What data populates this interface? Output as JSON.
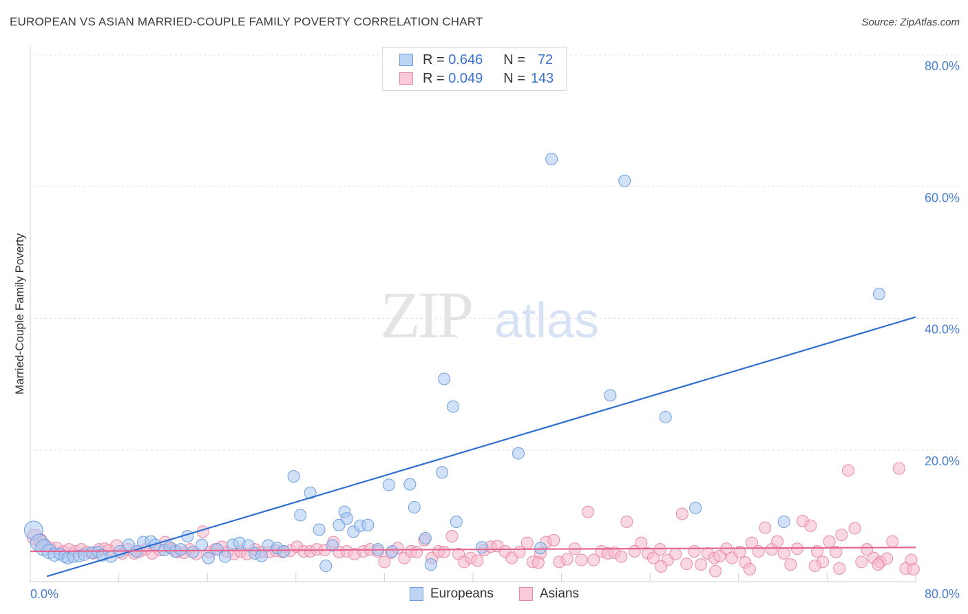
{
  "title": "EUROPEAN VS ASIAN MARRIED-COUPLE FAMILY POVERTY CORRELATION CHART",
  "source": "Source: ZipAtlas.com",
  "watermark": {
    "zip": "ZIP",
    "atlas": "atlas"
  },
  "legend": {
    "europeans": {
      "r_label": "R =",
      "r_value": "0.646",
      "n_label": "N =",
      "n_value": "72"
    },
    "asians": {
      "r_label": "R =",
      "r_value": "0.049",
      "n_label": "N =",
      "n_value": "143"
    }
  },
  "colors": {
    "europeans_fill": "#a9c8f2",
    "europeans_stroke": "#6e9edf",
    "europeans_line": "#2f6fd0",
    "asians_fill": "#f6b8cb",
    "asians_stroke": "#ea8aa9",
    "asians_line": "#e4658e",
    "tick": "#4a7fd0",
    "grid": "#dcdcdc"
  },
  "chart_data": {
    "type": "scatter",
    "title": "EUROPEAN VS ASIAN MARRIED-COUPLE FAMILY POVERTY CORRELATION CHART",
    "xlabel": "",
    "ylabel": "Married-Couple Family Poverty",
    "xlim": [
      0,
      80
    ],
    "ylim": [
      0,
      80
    ],
    "x_tick_labels": [
      "0.0%",
      "80.0%"
    ],
    "y_ticks": [
      20,
      40,
      60,
      80
    ],
    "y_tick_labels": [
      "20.0%",
      "40.0%",
      "60.0%",
      "80.0%"
    ],
    "legend_labels": [
      "Europeans",
      "Asians"
    ],
    "series": [
      {
        "name": "Europeans",
        "trend": {
          "x": [
            1.5,
            80
          ],
          "y": [
            0.8,
            40.2
          ]
        },
        "points": [
          [
            0.3,
            7.8
          ],
          [
            0.8,
            5.9
          ],
          [
            1.2,
            5.2
          ],
          [
            1.7,
            4.6
          ],
          [
            2.2,
            4.1
          ],
          [
            2.7,
            4.2
          ],
          [
            3.1,
            3.8
          ],
          [
            3.4,
            3.6
          ],
          [
            3.9,
            3.8
          ],
          [
            4.4,
            3.9
          ],
          [
            4.9,
            4.1
          ],
          [
            5.6,
            4.4
          ],
          [
            6.1,
            4.5
          ],
          [
            6.5,
            4.0
          ],
          [
            7.3,
            3.8
          ],
          [
            8.1,
            4.6
          ],
          [
            8.9,
            5.6
          ],
          [
            9.6,
            4.6
          ],
          [
            10.2,
            6.0
          ],
          [
            10.9,
            6.1
          ],
          [
            11.3,
            5.6
          ],
          [
            12.1,
            4.8
          ],
          [
            12.6,
            5.2
          ],
          [
            13.1,
            4.6
          ],
          [
            13.6,
            4.9
          ],
          [
            14.2,
            6.9
          ],
          [
            14.7,
            4.5
          ],
          [
            15.5,
            5.6
          ],
          [
            16.1,
            3.6
          ],
          [
            16.9,
            4.9
          ],
          [
            17.6,
            3.8
          ],
          [
            18.3,
            5.6
          ],
          [
            18.9,
            5.9
          ],
          [
            19.7,
            5.5
          ],
          [
            20.3,
            4.3
          ],
          [
            20.9,
            3.9
          ],
          [
            21.5,
            5.5
          ],
          [
            22.3,
            5.1
          ],
          [
            22.9,
            4.6
          ],
          [
            23.8,
            16.0
          ],
          [
            24.4,
            10.1
          ],
          [
            25.3,
            13.5
          ],
          [
            26.1,
            7.9
          ],
          [
            26.7,
            2.4
          ],
          [
            27.3,
            5.5
          ],
          [
            27.9,
            8.6
          ],
          [
            28.4,
            10.6
          ],
          [
            28.6,
            9.6
          ],
          [
            29.2,
            7.6
          ],
          [
            29.8,
            8.5
          ],
          [
            30.5,
            8.6
          ],
          [
            31.4,
            4.9
          ],
          [
            32.4,
            14.7
          ],
          [
            32.7,
            4.6
          ],
          [
            34.3,
            14.8
          ],
          [
            34.7,
            11.3
          ],
          [
            35.7,
            6.6
          ],
          [
            36.2,
            2.6
          ],
          [
            37.2,
            16.6
          ],
          [
            37.4,
            30.8
          ],
          [
            38.2,
            26.6
          ],
          [
            38.5,
            9.1
          ],
          [
            40.8,
            5.2
          ],
          [
            44.1,
            19.5
          ],
          [
            46.1,
            5.1
          ],
          [
            47.1,
            64.2
          ],
          [
            52.4,
            28.3
          ],
          [
            53.7,
            60.9
          ],
          [
            57.4,
            25.0
          ],
          [
            60.1,
            11.2
          ],
          [
            68.1,
            9.1
          ],
          [
            76.7,
            43.7
          ]
        ]
      },
      {
        "name": "Asians",
        "trend": {
          "x": [
            0,
            80
          ],
          "y": [
            4.6,
            5.2
          ]
        },
        "points": [
          [
            0.4,
            6.8
          ],
          [
            0.9,
            6.2
          ],
          [
            1.3,
            5.5
          ],
          [
            1.8,
            5.1
          ],
          [
            2.4,
            5.1
          ],
          [
            3.0,
            4.6
          ],
          [
            3.5,
            4.9
          ],
          [
            4.1,
            4.6
          ],
          [
            4.6,
            4.9
          ],
          [
            5.1,
            4.5
          ],
          [
            5.7,
            4.3
          ],
          [
            6.2,
            4.9
          ],
          [
            6.7,
            5.0
          ],
          [
            7.1,
            4.8
          ],
          [
            7.8,
            5.5
          ],
          [
            8.3,
            4.3
          ],
          [
            8.8,
            4.9
          ],
          [
            9.4,
            4.3
          ],
          [
            9.9,
            4.6
          ],
          [
            10.4,
            4.9
          ],
          [
            11.0,
            4.3
          ],
          [
            11.7,
            4.8
          ],
          [
            12.2,
            6.0
          ],
          [
            12.8,
            5.0
          ],
          [
            13.3,
            4.5
          ],
          [
            13.9,
            4.4
          ],
          [
            14.4,
            4.9
          ],
          [
            15.0,
            4.2
          ],
          [
            15.6,
            7.6
          ],
          [
            16.2,
            4.5
          ],
          [
            16.7,
            4.9
          ],
          [
            17.3,
            5.3
          ],
          [
            17.8,
            4.5
          ],
          [
            18.4,
            4.2
          ],
          [
            19.0,
            4.6
          ],
          [
            19.6,
            4.2
          ],
          [
            20.3,
            4.9
          ],
          [
            20.9,
            4.5
          ],
          [
            21.6,
            4.5
          ],
          [
            22.2,
            4.7
          ],
          [
            22.8,
            4.5
          ],
          [
            23.5,
            4.7
          ],
          [
            24.1,
            5.3
          ],
          [
            24.7,
            4.6
          ],
          [
            25.3,
            4.6
          ],
          [
            25.9,
            4.9
          ],
          [
            26.6,
            4.8
          ],
          [
            27.4,
            6.0
          ],
          [
            27.9,
            4.5
          ],
          [
            28.6,
            4.6
          ],
          [
            29.3,
            4.2
          ],
          [
            30.1,
            4.6
          ],
          [
            30.7,
            4.9
          ],
          [
            31.4,
            4.6
          ],
          [
            32.0,
            3.0
          ],
          [
            32.6,
            4.4
          ],
          [
            33.2,
            5.1
          ],
          [
            33.8,
            3.6
          ],
          [
            34.4,
            4.6
          ],
          [
            34.9,
            4.5
          ],
          [
            35.6,
            6.3
          ],
          [
            36.3,
            3.6
          ],
          [
            36.9,
            4.6
          ],
          [
            37.4,
            4.5
          ],
          [
            38.1,
            6.9
          ],
          [
            38.7,
            4.2
          ],
          [
            39.2,
            3.0
          ],
          [
            39.8,
            3.6
          ],
          [
            40.4,
            3.2
          ],
          [
            41.0,
            4.8
          ],
          [
            41.6,
            5.3
          ],
          [
            42.2,
            5.4
          ],
          [
            42.9,
            4.6
          ],
          [
            43.5,
            3.6
          ],
          [
            44.2,
            4.5
          ],
          [
            44.9,
            5.9
          ],
          [
            45.4,
            3.0
          ],
          [
            46.1,
            4.3
          ],
          [
            46.6,
            6.0
          ],
          [
            47.3,
            6.3
          ],
          [
            47.8,
            3.0
          ],
          [
            48.5,
            3.4
          ],
          [
            49.2,
            5.0
          ],
          [
            49.8,
            3.3
          ],
          [
            50.4,
            10.6
          ],
          [
            50.9,
            3.3
          ],
          [
            51.6,
            4.6
          ],
          [
            52.2,
            4.3
          ],
          [
            52.8,
            4.4
          ],
          [
            53.4,
            3.8
          ],
          [
            53.9,
            9.1
          ],
          [
            54.6,
            4.6
          ],
          [
            55.2,
            5.9
          ],
          [
            55.8,
            4.3
          ],
          [
            56.3,
            3.6
          ],
          [
            56.9,
            4.9
          ],
          [
            57.6,
            3.3
          ],
          [
            58.3,
            4.2
          ],
          [
            58.9,
            10.3
          ],
          [
            59.3,
            2.7
          ],
          [
            60.0,
            4.6
          ],
          [
            60.6,
            2.6
          ],
          [
            61.2,
            4.3
          ],
          [
            61.8,
            3.6
          ],
          [
            62.3,
            3.9
          ],
          [
            62.9,
            5.0
          ],
          [
            63.4,
            3.6
          ],
          [
            64.1,
            4.5
          ],
          [
            64.6,
            2.9
          ],
          [
            65.2,
            5.9
          ],
          [
            65.8,
            4.6
          ],
          [
            66.4,
            8.2
          ],
          [
            67.0,
            4.9
          ],
          [
            67.5,
            6.1
          ],
          [
            68.1,
            4.3
          ],
          [
            68.7,
            2.6
          ],
          [
            69.3,
            5.0
          ],
          [
            69.8,
            9.2
          ],
          [
            70.5,
            8.5
          ],
          [
            71.1,
            4.6
          ],
          [
            71.6,
            3.0
          ],
          [
            72.2,
            6.1
          ],
          [
            72.8,
            4.5
          ],
          [
            73.3,
            7.1
          ],
          [
            73.9,
            16.9
          ],
          [
            74.5,
            8.1
          ],
          [
            75.1,
            3.0
          ],
          [
            75.6,
            4.9
          ],
          [
            76.2,
            3.6
          ],
          [
            76.8,
            3.0
          ],
          [
            77.4,
            3.5
          ],
          [
            77.9,
            6.1
          ],
          [
            78.5,
            17.2
          ],
          [
            79.1,
            2.0
          ],
          [
            79.6,
            3.3
          ],
          [
            57.0,
            2.3
          ],
          [
            61.9,
            1.6
          ],
          [
            65.0,
            1.9
          ],
          [
            70.9,
            2.4
          ],
          [
            73.1,
            2.0
          ],
          [
            76.6,
            2.6
          ],
          [
            79.8,
            1.9
          ],
          [
            45.9,
            2.9
          ]
        ]
      }
    ]
  }
}
